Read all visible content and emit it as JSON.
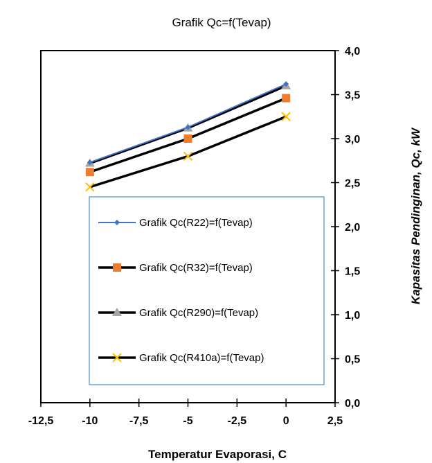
{
  "chart_data": {
    "type": "line",
    "title": "Grafik Qc=f(Tevap)",
    "xlabel": "Temperatur Evaporasi, C",
    "ylabel": "Kapasitas Pendinginan, Qc, kW",
    "xlim": [
      -12.5,
      2.5
    ],
    "ylim": [
      0,
      4
    ],
    "xticks": [
      "-12,5",
      "-10",
      "-7,5",
      "-5",
      "-2,5",
      "0",
      "2,5"
    ],
    "xtick_values": [
      -12.5,
      -10,
      -7.5,
      -5,
      -2.5,
      0,
      2.5
    ],
    "yticks": [
      "0,0",
      "0,5",
      "1,0",
      "1,5",
      "2,0",
      "2,5",
      "3,0",
      "3,5",
      "4,0"
    ],
    "ytick_values": [
      0,
      0.5,
      1,
      1.5,
      2,
      2.5,
      3,
      3.5,
      4
    ],
    "y_axis_side": "right",
    "grid": false,
    "legend_position": "lower-center",
    "x": [
      -10,
      -5,
      0
    ],
    "series": [
      {
        "name": "Grafik Qc(R22)=f(Tevap)",
        "values": [
          2.73,
          3.13,
          3.62
        ],
        "color": "#4472c4",
        "marker": "diamond"
      },
      {
        "name": "Grafik Qc(R32)=f(Tevap)",
        "values": [
          2.62,
          3.0,
          3.46
        ],
        "color": "#ed7d31",
        "marker": "square"
      },
      {
        "name": "Grafik Qc(R290)=f(Tevap)",
        "values": [
          2.72,
          3.12,
          3.6
        ],
        "color": "#a5a5a5",
        "marker": "triangle"
      },
      {
        "name": "Grafik Qc(R410a)=f(Tevap)",
        "values": [
          2.45,
          2.8,
          3.25
        ],
        "color": "#ffc000",
        "marker": "x"
      }
    ]
  }
}
